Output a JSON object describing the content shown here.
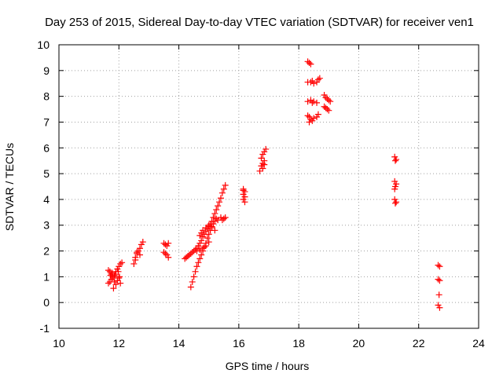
{
  "chart_data": {
    "type": "scatter",
    "title": "Day 253 of 2015, Sidereal Day-to-day VTEC variation (SDTVAR) for receiver ven1",
    "xlabel": "GPS time / hours",
    "ylabel": "SDTVAR / TECUs",
    "xlim": [
      10,
      24
    ],
    "ylim": [
      -1,
      10
    ],
    "xticks": [
      10,
      12,
      14,
      16,
      18,
      20,
      22,
      24
    ],
    "yticks": [
      -1,
      0,
      1,
      2,
      3,
      4,
      5,
      6,
      7,
      8,
      9,
      10
    ],
    "grid": true,
    "marker": "+",
    "marker_color": "#ff0000",
    "series": [
      {
        "name": "ven1",
        "points": [
          [
            11.65,
            1.25
          ],
          [
            11.7,
            1.2
          ],
          [
            11.75,
            1.1
          ],
          [
            11.8,
            1.0
          ],
          [
            11.85,
            1.05
          ],
          [
            11.9,
            1.2
          ],
          [
            11.95,
            1.3
          ],
          [
            12.0,
            1.4
          ],
          [
            12.05,
            1.5
          ],
          [
            12.1,
            1.55
          ],
          [
            11.65,
            0.75
          ],
          [
            11.7,
            0.8
          ],
          [
            11.75,
            0.9
          ],
          [
            11.8,
            0.95
          ],
          [
            11.85,
            0.8
          ],
          [
            11.9,
            0.7
          ],
          [
            11.95,
            0.85
          ],
          [
            12.0,
            0.95
          ],
          [
            12.05,
            0.75
          ],
          [
            11.82,
            0.55
          ],
          [
            11.72,
            1.05
          ],
          [
            11.78,
            1.15
          ],
          [
            11.88,
            1.1
          ],
          [
            11.98,
            1.2
          ],
          [
            12.02,
            1.0
          ],
          [
            12.5,
            1.5
          ],
          [
            12.55,
            1.75
          ],
          [
            12.6,
            1.9
          ],
          [
            12.65,
            2.0
          ],
          [
            12.7,
            2.1
          ],
          [
            12.75,
            2.25
          ],
          [
            12.8,
            2.35
          ],
          [
            12.6,
            1.95
          ],
          [
            12.7,
            1.85
          ],
          [
            12.55,
            1.65
          ],
          [
            13.5,
            2.3
          ],
          [
            13.55,
            2.25
          ],
          [
            13.6,
            2.2
          ],
          [
            13.65,
            2.3
          ],
          [
            13.5,
            1.95
          ],
          [
            13.55,
            1.9
          ],
          [
            13.6,
            1.85
          ],
          [
            13.65,
            1.75
          ],
          [
            14.2,
            1.7
          ],
          [
            14.25,
            1.75
          ],
          [
            14.3,
            1.8
          ],
          [
            14.35,
            1.85
          ],
          [
            14.4,
            1.9
          ],
          [
            14.45,
            1.95
          ],
          [
            14.5,
            2.0
          ],
          [
            14.55,
            2.05
          ],
          [
            14.6,
            2.1
          ],
          [
            14.65,
            2.2
          ],
          [
            14.7,
            2.3
          ],
          [
            14.75,
            2.4
          ],
          [
            14.8,
            2.55
          ],
          [
            14.85,
            2.65
          ],
          [
            14.9,
            2.75
          ],
          [
            14.95,
            2.85
          ],
          [
            15.0,
            2.95
          ],
          [
            15.05,
            3.05
          ],
          [
            15.1,
            3.15
          ],
          [
            15.15,
            3.3
          ],
          [
            15.2,
            3.45
          ],
          [
            15.25,
            3.6
          ],
          [
            15.3,
            3.75
          ],
          [
            15.35,
            3.9
          ],
          [
            15.4,
            4.05
          ],
          [
            15.45,
            4.25
          ],
          [
            15.5,
            4.4
          ],
          [
            15.55,
            4.55
          ],
          [
            14.4,
            0.6
          ],
          [
            14.45,
            0.8
          ],
          [
            14.5,
            1.0
          ],
          [
            14.55,
            1.2
          ],
          [
            14.6,
            1.4
          ],
          [
            14.65,
            1.55
          ],
          [
            14.7,
            1.7
          ],
          [
            14.75,
            1.85
          ],
          [
            14.8,
            2.0
          ],
          [
            14.85,
            2.15
          ],
          [
            14.9,
            2.3
          ],
          [
            14.95,
            2.5
          ],
          [
            15.0,
            2.65
          ],
          [
            15.05,
            2.8
          ],
          [
            15.1,
            2.95
          ],
          [
            15.15,
            3.05
          ],
          [
            15.2,
            3.15
          ],
          [
            15.25,
            3.25
          ],
          [
            14.7,
            2.6
          ],
          [
            14.75,
            2.7
          ],
          [
            14.8,
            2.8
          ],
          [
            14.9,
            2.9
          ],
          [
            15.0,
            3.0
          ],
          [
            15.1,
            2.9
          ],
          [
            15.2,
            2.8
          ],
          [
            15.3,
            3.2
          ],
          [
            15.4,
            3.3
          ],
          [
            15.5,
            3.25
          ],
          [
            15.55,
            3.3
          ],
          [
            15.45,
            3.2
          ],
          [
            14.6,
            2.0
          ],
          [
            14.7,
            2.05
          ],
          [
            14.8,
            2.1
          ],
          [
            14.9,
            2.2
          ],
          [
            15.0,
            2.35
          ],
          [
            16.15,
            4.4
          ],
          [
            16.2,
            4.3
          ],
          [
            16.15,
            4.2
          ],
          [
            16.2,
            4.1
          ],
          [
            16.15,
            4.0
          ],
          [
            16.2,
            3.9
          ],
          [
            16.15,
            4.35
          ],
          [
            16.7,
            5.1
          ],
          [
            16.75,
            5.3
          ],
          [
            16.8,
            5.4
          ],
          [
            16.85,
            5.5
          ],
          [
            16.75,
            5.6
          ],
          [
            16.8,
            5.75
          ],
          [
            16.85,
            5.85
          ],
          [
            16.9,
            5.95
          ],
          [
            16.8,
            5.2
          ],
          [
            16.85,
            5.35
          ],
          [
            18.3,
            9.35
          ],
          [
            18.35,
            9.3
          ],
          [
            18.4,
            9.25
          ],
          [
            18.3,
            8.55
          ],
          [
            18.4,
            8.55
          ],
          [
            18.5,
            8.5
          ],
          [
            18.6,
            8.55
          ],
          [
            18.65,
            8.65
          ],
          [
            18.7,
            8.7
          ],
          [
            18.45,
            8.6
          ],
          [
            18.3,
            7.8
          ],
          [
            18.4,
            7.85
          ],
          [
            18.5,
            7.8
          ],
          [
            18.6,
            7.75
          ],
          [
            18.45,
            7.75
          ],
          [
            18.3,
            7.25
          ],
          [
            18.35,
            7.2
          ],
          [
            18.4,
            7.1
          ],
          [
            18.45,
            7.05
          ],
          [
            18.5,
            7.15
          ],
          [
            18.6,
            7.2
          ],
          [
            18.65,
            7.3
          ],
          [
            18.35,
            7.0
          ],
          [
            18.85,
            8.05
          ],
          [
            18.9,
            7.95
          ],
          [
            18.95,
            7.9
          ],
          [
            19.0,
            7.85
          ],
          [
            19.05,
            7.8
          ],
          [
            18.85,
            7.6
          ],
          [
            18.9,
            7.55
          ],
          [
            18.95,
            7.5
          ],
          [
            19.0,
            7.45
          ],
          [
            21.2,
            5.65
          ],
          [
            21.25,
            5.55
          ],
          [
            21.22,
            5.5
          ],
          [
            21.2,
            4.7
          ],
          [
            21.25,
            4.6
          ],
          [
            21.22,
            4.5
          ],
          [
            21.2,
            4.4
          ],
          [
            21.2,
            4.0
          ],
          [
            21.25,
            3.9
          ],
          [
            21.22,
            3.85
          ],
          [
            22.65,
            1.45
          ],
          [
            22.7,
            1.4
          ],
          [
            22.65,
            0.9
          ],
          [
            22.7,
            0.85
          ],
          [
            22.68,
            0.3
          ],
          [
            22.65,
            -0.1
          ],
          [
            22.7,
            -0.2
          ]
        ]
      }
    ]
  }
}
